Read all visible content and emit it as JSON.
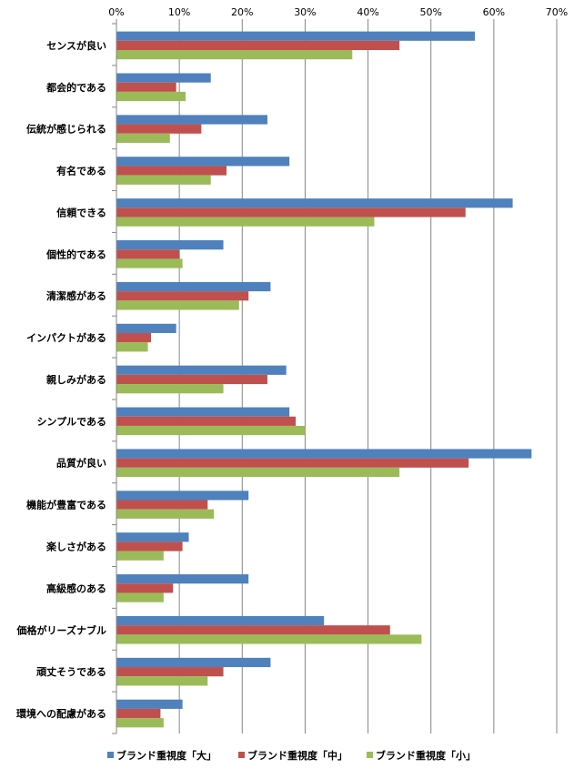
{
  "chart_data": {
    "type": "bar",
    "orientation": "horizontal",
    "categories": [
      "センスが良い",
      "都会的である",
      "伝統が感じられる",
      "有名である",
      "信頼できる",
      "個性的である",
      "清潔感がある",
      "インパクトがある",
      "親しみがある",
      "シンプルである",
      "品質が良い",
      "機能が豊富である",
      "楽しさがある",
      "高級感のある",
      "価格がリーズナブル",
      "頑丈そうである",
      "環境への配慮がある"
    ],
    "series": [
      {
        "name": "ブランド重視度「大」",
        "color": "#4F81BD",
        "values": [
          57,
          15,
          24,
          27.5,
          63,
          17,
          24.5,
          9.5,
          27,
          27.5,
          66,
          21,
          11.5,
          21,
          33,
          24.5,
          10.5
        ]
      },
      {
        "name": "ブランド重視度「中」",
        "color": "#C0504D",
        "values": [
          45,
          9.5,
          13.5,
          17.5,
          55.5,
          10,
          21,
          5.5,
          24,
          28.5,
          56,
          14.5,
          10.5,
          9,
          43.5,
          17,
          7
        ]
      },
      {
        "name": "ブランド重視度「小」",
        "color": "#9BBB59",
        "values": [
          37.5,
          11,
          8.5,
          15,
          41,
          10.5,
          19.5,
          5,
          17,
          30,
          45,
          15.5,
          7.5,
          7.5,
          48.5,
          14.5,
          7.5
        ]
      }
    ],
    "xlim": [
      0,
      70
    ],
    "xticks": [
      0,
      10,
      20,
      30,
      40,
      50,
      60,
      70
    ],
    "tick_format": "%",
    "grid": true,
    "legend": "bottom"
  }
}
